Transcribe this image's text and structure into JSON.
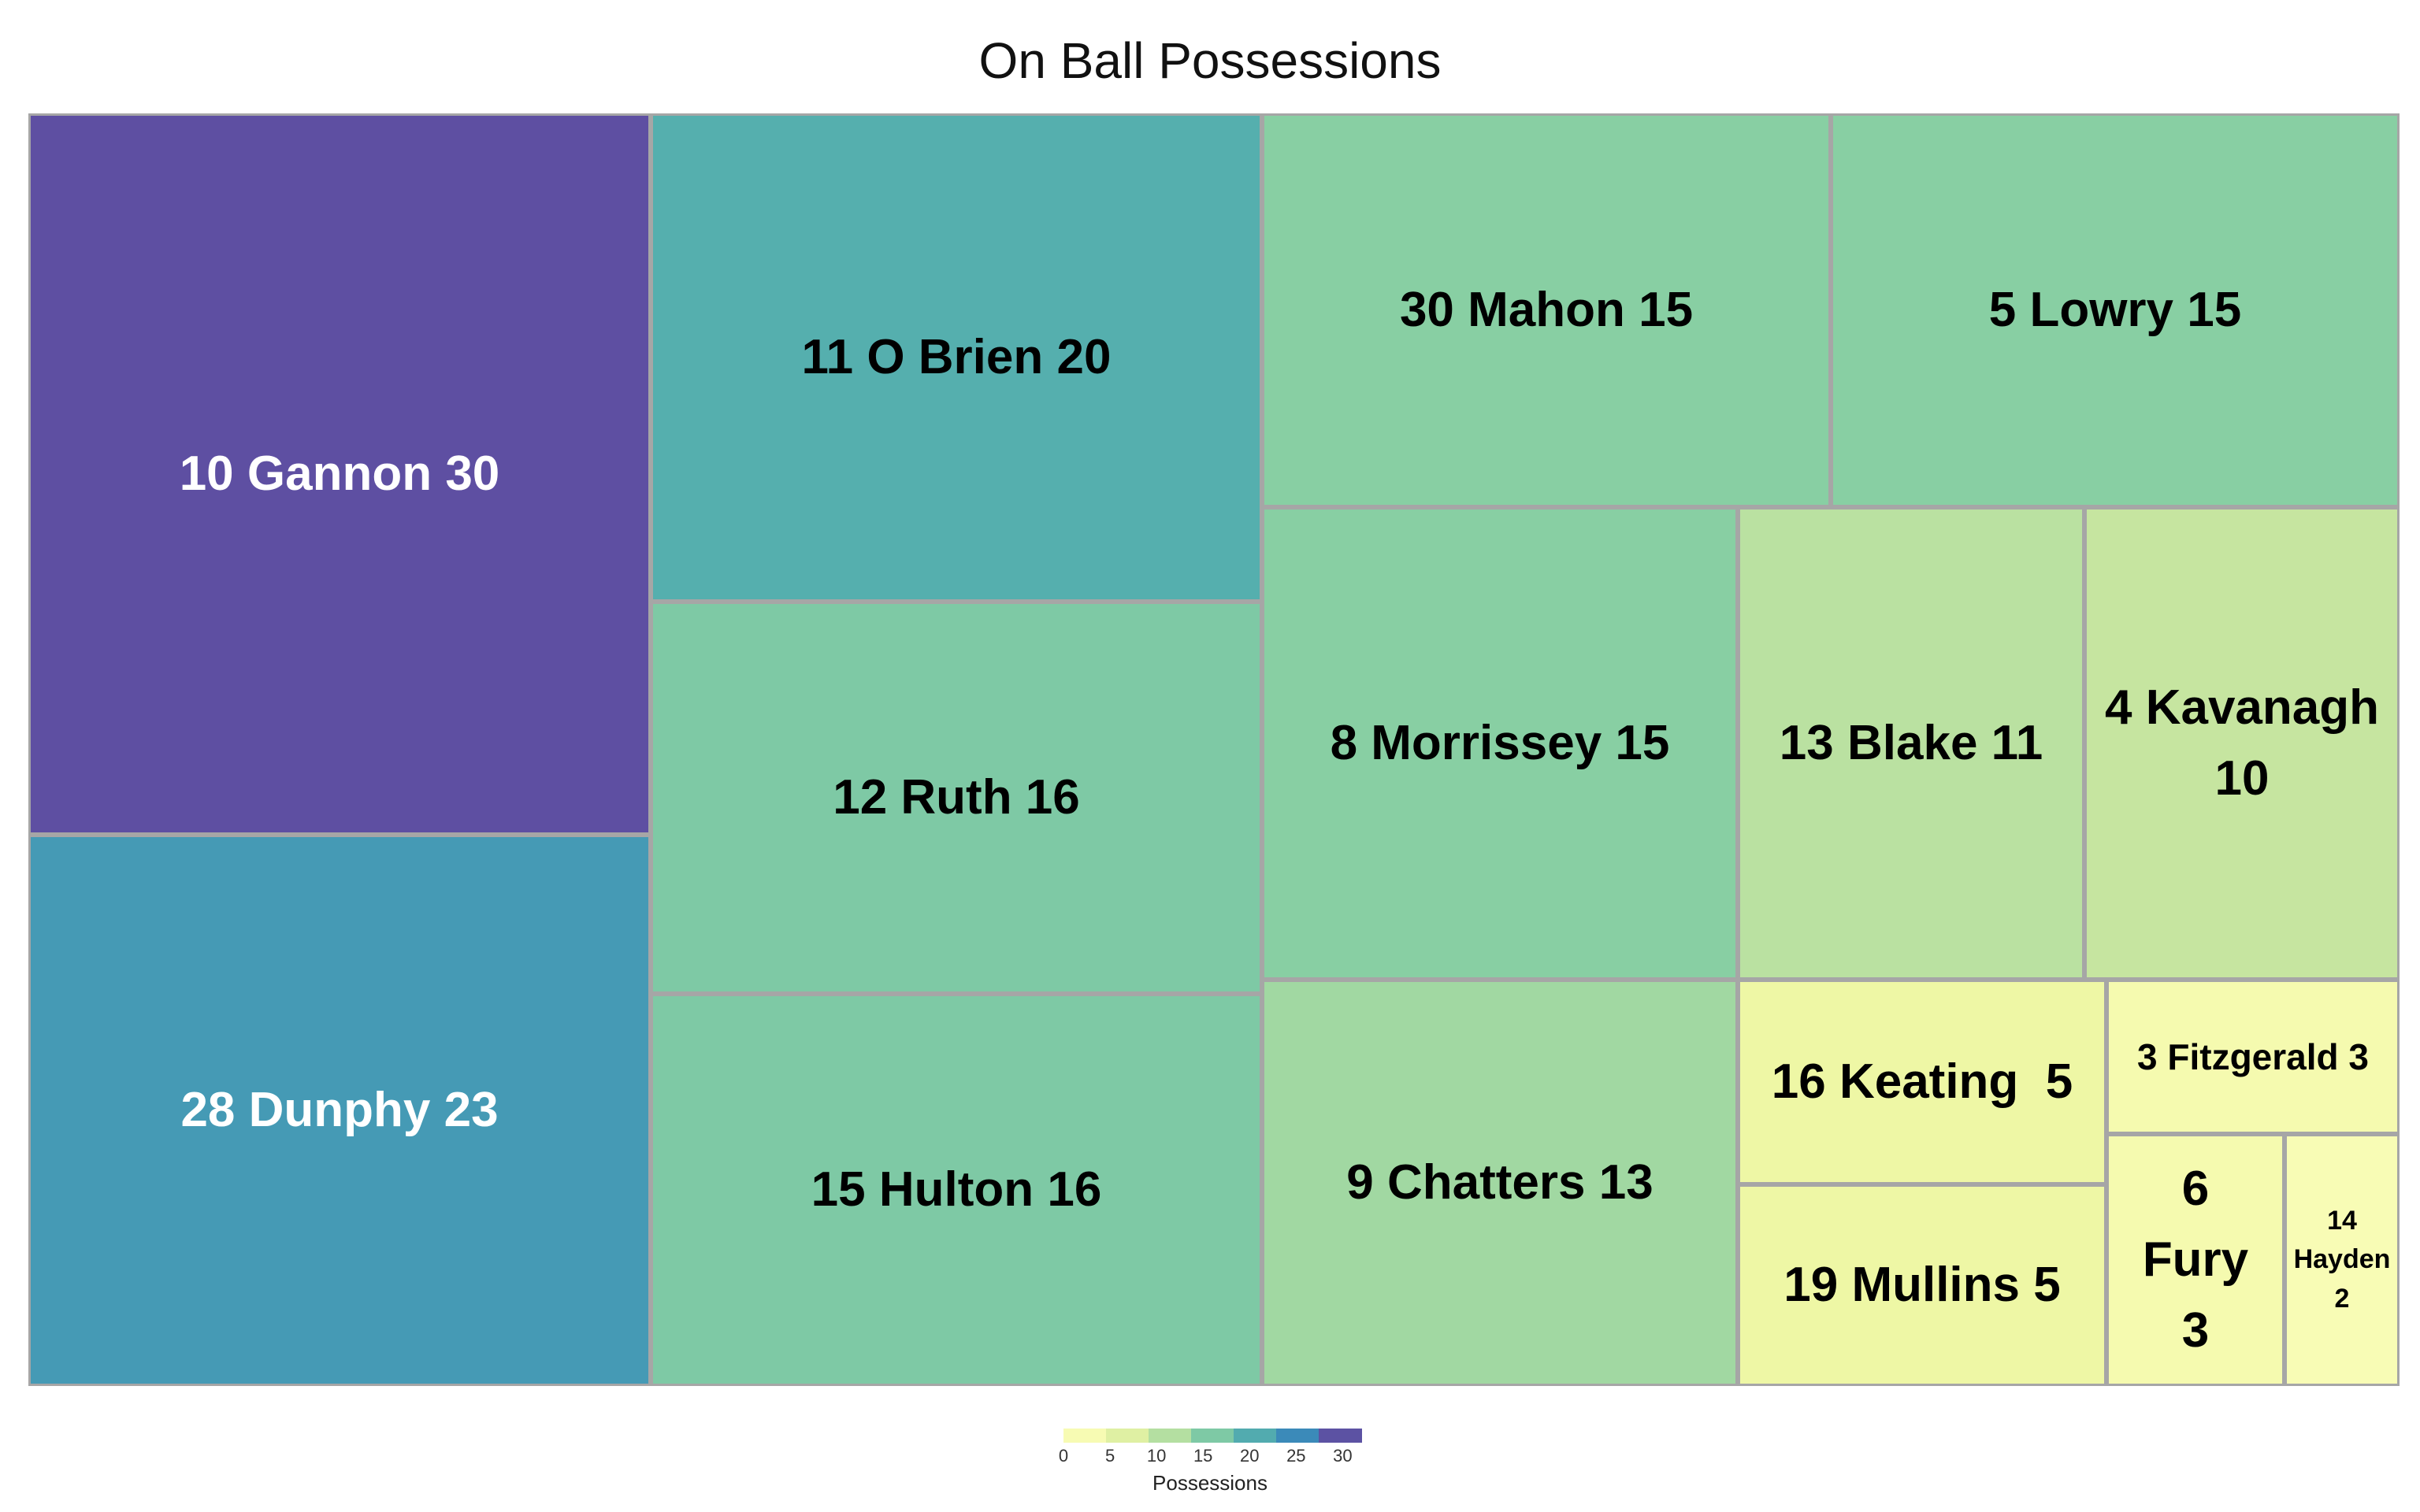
{
  "chart_data": {
    "type": "treemap",
    "title": "On Ball Possessions",
    "value_name": "Possessions",
    "colorscale": {
      "min": 0,
      "max": 32,
      "ticks": [
        0,
        5,
        10,
        15,
        20,
        25,
        30
      ],
      "stops": [
        {
          "value": 0,
          "color": "#ffffbf"
        },
        {
          "value": 5,
          "color": "#eef7a5"
        },
        {
          "value": 10,
          "color": "#c6e5a0"
        },
        {
          "value": 15,
          "color": "#88cfa3"
        },
        {
          "value": 20,
          "color": "#55afae"
        },
        {
          "value": 25,
          "color": "#3a8cba"
        },
        {
          "value": 30,
          "color": "#5e4fa2"
        }
      ]
    },
    "items": [
      {
        "label": "10 Gannon 30",
        "name": "Gannon",
        "number": 10,
        "value": 30,
        "text_color": "#ffffff"
      },
      {
        "label": "28 Dunphy 23",
        "name": "Dunphy",
        "number": 28,
        "value": 23,
        "text_color": "#ffffff"
      },
      {
        "label": "11 O Brien 20",
        "name": "O Brien",
        "number": 11,
        "value": 20,
        "text_color": "#000000"
      },
      {
        "label": "12 Ruth 16",
        "name": "Ruth",
        "number": 12,
        "value": 16,
        "text_color": "#000000"
      },
      {
        "label": "15 Hulton 16",
        "name": "Hulton",
        "number": 15,
        "value": 16,
        "text_color": "#000000"
      },
      {
        "label": "30 Mahon 15",
        "name": "Mahon",
        "number": 30,
        "value": 15,
        "text_color": "#000000"
      },
      {
        "label": "5 Lowry 15",
        "name": "Lowry",
        "number": 5,
        "value": 15,
        "text_color": "#000000"
      },
      {
        "label": "8 Morrissey 15",
        "name": "Morrissey",
        "number": 8,
        "value": 15,
        "text_color": "#000000"
      },
      {
        "label": "13 Blake 11",
        "name": "Blake",
        "number": 13,
        "value": 11,
        "text_color": "#000000"
      },
      {
        "label": "4 Kavanagh 10",
        "name": "Kavanagh",
        "number": 4,
        "value": 10,
        "text_color": "#000000"
      },
      {
        "label": "9 Chatters 13",
        "name": "Chatters",
        "number": 9,
        "value": 13,
        "text_color": "#000000"
      },
      {
        "label": "16 Keating  5",
        "name": "Keating",
        "number": 16,
        "value": 5,
        "text_color": "#000000"
      },
      {
        "label": "19 Mullins 5",
        "name": "Mullins",
        "number": 19,
        "value": 5,
        "text_color": "#000000"
      },
      {
        "label": "3 Fitzgerald 3",
        "name": "Fitzgerald",
        "number": 3,
        "value": 3,
        "text_color": "#000000"
      },
      {
        "label": "6 Fury 3",
        "name": "Fury",
        "number": 6,
        "value": 3,
        "text_color": "#000000"
      },
      {
        "label": "14 Hayden 2",
        "name": "Hayden",
        "number": 14,
        "value": 2,
        "text_color": "#000000"
      }
    ]
  }
}
